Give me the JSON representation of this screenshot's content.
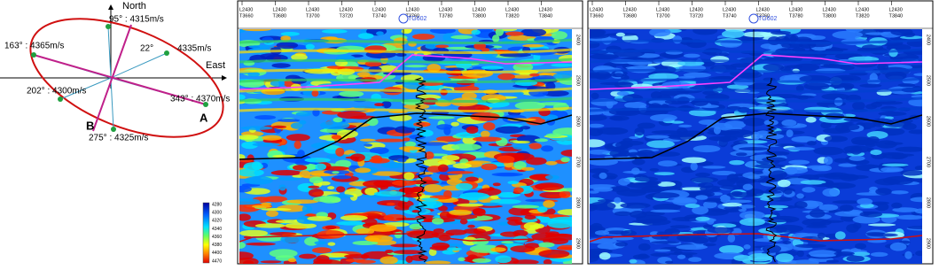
{
  "diagram": {
    "north": "North",
    "east": "East",
    "labels": [
      "95° : 4315m/s",
      "22°",
      "4335m/s",
      "163° : 4365m/s",
      "202° : 4300m/s",
      "343° : 4370m/s",
      "275° : 4325m/s"
    ],
    "point_a": "A",
    "point_b": "B"
  },
  "colorbar": {
    "ticks": [
      "4280",
      "4300",
      "4320",
      "4340",
      "4360",
      "4380",
      "4400",
      "4470"
    ]
  },
  "panels": [
    {
      "traces": [
        [
          "L2430",
          "T3660"
        ],
        [
          "L2430",
          "T3680"
        ],
        [
          "L2430",
          "T3700"
        ],
        [
          "L2430",
          "T3720"
        ],
        [
          "L2430",
          "T3740"
        ],
        [
          "L2430",
          "T3760"
        ],
        [
          "L2430",
          "T3780"
        ],
        [
          "L2430",
          "T3800"
        ],
        [
          "L2430",
          "T3820"
        ],
        [
          "L2430",
          "T3840"
        ]
      ],
      "well": "TG602",
      "depths": [
        "2400",
        "2500",
        "2600",
        "2700",
        "2800",
        "2900"
      ]
    },
    {
      "traces": [
        [
          "L2430",
          "T3660"
        ],
        [
          "L2430",
          "T3680"
        ],
        [
          "L2430",
          "T3700"
        ],
        [
          "L2430",
          "T3720"
        ],
        [
          "L2430",
          "T3740"
        ],
        [
          "L2430",
          "T3760"
        ],
        [
          "L2430",
          "T3780"
        ],
        [
          "L2430",
          "T3800"
        ],
        [
          "L2430",
          "T3820"
        ],
        [
          "L2430",
          "T3840"
        ]
      ],
      "well": "TG602",
      "depths": [
        "2400",
        "2500",
        "2600",
        "2700",
        "2800",
        "2900"
      ]
    }
  ]
}
